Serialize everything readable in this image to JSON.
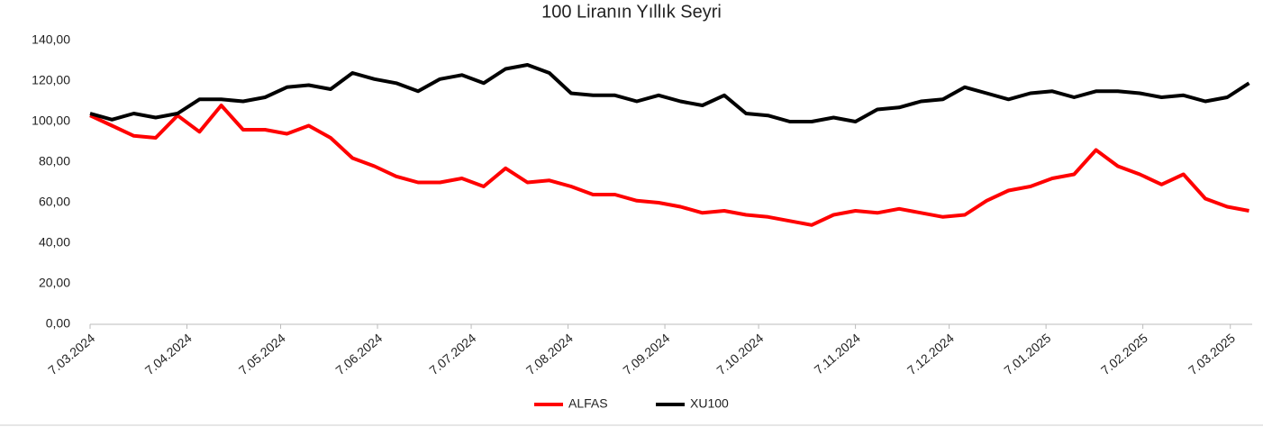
{
  "chart_data": {
    "type": "line",
    "title": "100 Liranın Yıllık Seyri",
    "x": [
      "2024-03-07",
      "2024-03-14",
      "2024-03-21",
      "2024-03-28",
      "2024-04-04",
      "2024-04-11",
      "2024-04-18",
      "2024-04-25",
      "2024-05-02",
      "2024-05-09",
      "2024-05-16",
      "2024-05-23",
      "2024-05-30",
      "2024-06-06",
      "2024-06-13",
      "2024-06-20",
      "2024-06-27",
      "2024-07-04",
      "2024-07-11",
      "2024-07-18",
      "2024-07-25",
      "2024-08-01",
      "2024-08-08",
      "2024-08-15",
      "2024-08-22",
      "2024-08-29",
      "2024-09-05",
      "2024-09-12",
      "2024-09-19",
      "2024-09-26",
      "2024-10-03",
      "2024-10-10",
      "2024-10-17",
      "2024-10-24",
      "2024-10-31",
      "2024-11-07",
      "2024-11-14",
      "2024-11-21",
      "2024-11-28",
      "2024-12-05",
      "2024-12-12",
      "2024-12-19",
      "2024-12-26",
      "2025-01-02",
      "2025-01-09",
      "2025-01-16",
      "2025-01-23",
      "2025-01-30",
      "2025-02-06",
      "2025-02-13",
      "2025-02-20",
      "2025-02-27",
      "2025-03-06",
      "2025-03-13"
    ],
    "series": [
      {
        "name": "ALFAS",
        "color": "#ff0000",
        "values": [
          103,
          98,
          93,
          92,
          103,
          95,
          108,
          96,
          96,
          94,
          98,
          92,
          82,
          78,
          73,
          70,
          70,
          72,
          68,
          77,
          70,
          71,
          68,
          64,
          64,
          61,
          60,
          58,
          55,
          56,
          54,
          53,
          51,
          49,
          54,
          56,
          55,
          57,
          55,
          53,
          54,
          61,
          66,
          68,
          72,
          74,
          86,
          78,
          74,
          69,
          74,
          62,
          58,
          56
        ]
      },
      {
        "name": "XU100",
        "color": "#000000",
        "values": [
          104,
          101,
          104,
          102,
          104,
          111,
          111,
          110,
          112,
          117,
          118,
          116,
          124,
          121,
          119,
          115,
          121,
          123,
          119,
          126,
          128,
          124,
          114,
          113,
          113,
          110,
          113,
          110,
          108,
          113,
          104,
          103,
          100,
          100,
          102,
          100,
          106,
          107,
          110,
          111,
          117,
          114,
          111,
          114,
          115,
          112,
          115,
          115,
          114,
          112,
          113,
          110,
          112,
          119
        ]
      }
    ],
    "xlim": [
      "2024-03-07",
      "2025-03-14"
    ],
    "xticks": [
      {
        "value": "2024-03-07",
        "label": "7.03.2024"
      },
      {
        "value": "2024-04-07",
        "label": "7.04.2024"
      },
      {
        "value": "2024-05-07",
        "label": "7.05.2024"
      },
      {
        "value": "2024-06-07",
        "label": "7.06.2024"
      },
      {
        "value": "2024-07-07",
        "label": "7.07.2024"
      },
      {
        "value": "2024-08-07",
        "label": "7.08.2024"
      },
      {
        "value": "2024-09-07",
        "label": "7.09.2024"
      },
      {
        "value": "2024-10-07",
        "label": "7.10.2024"
      },
      {
        "value": "2024-11-07",
        "label": "7.11.2024"
      },
      {
        "value": "2024-12-07",
        "label": "7.12.2024"
      },
      {
        "value": "2025-01-07",
        "label": "7.01.2025"
      },
      {
        "value": "2025-02-07",
        "label": "7.02.2025"
      },
      {
        "value": "2025-03-07",
        "label": "7.03.2025"
      }
    ],
    "ylim": [
      0,
      140
    ],
    "yticks": [
      {
        "value": 0,
        "label": "0,00"
      },
      {
        "value": 20,
        "label": "20,00"
      },
      {
        "value": 40,
        "label": "40,00"
      },
      {
        "value": 60,
        "label": "60,00"
      },
      {
        "value": 80,
        "label": "80,00"
      },
      {
        "value": 100,
        "label": "100,00"
      },
      {
        "value": 120,
        "label": "120,00"
      },
      {
        "value": 140,
        "label": "140,00"
      }
    ],
    "grid": false,
    "legend": "bottom"
  }
}
